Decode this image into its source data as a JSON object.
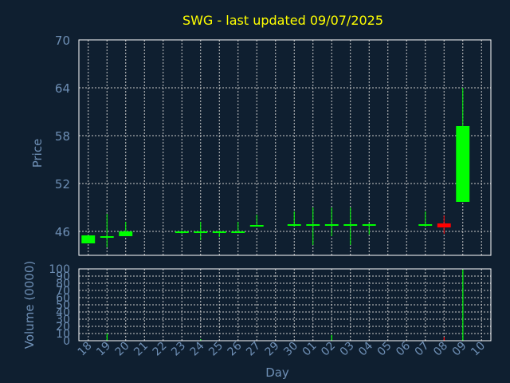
{
  "chart_data": [
    {
      "type": "candlestick",
      "title": "SWG - last updated 09/07/2025",
      "ylabel": "Price",
      "ylim": [
        43,
        70
      ],
      "yticks": [
        "70",
        "64",
        "58",
        "52",
        "46"
      ],
      "x_tick_labels": [
        "18",
        "19",
        "20",
        "21",
        "22",
        "23",
        "24",
        "25",
        "26",
        "27",
        "29",
        "30",
        "01",
        "02",
        "03",
        "04",
        "05",
        "06",
        "07",
        "08",
        "09",
        "10"
      ],
      "grid": true,
      "candles": [
        {
          "x": "18",
          "open": 44.5,
          "high": 45.5,
          "low": 44.5,
          "close": 45.5,
          "color": "#00ff00"
        },
        {
          "x": "19",
          "open": 45.3,
          "high": 48.2,
          "low": 44.0,
          "close": 45.4,
          "color": "#00ff00"
        },
        {
          "x": "20",
          "open": 45.4,
          "high": 47.2,
          "low": 45.4,
          "close": 46.0,
          "color": "#00ff00"
        },
        {
          "x": "23",
          "open": 45.9,
          "high": 46.1,
          "low": 45.7,
          "close": 46.0,
          "color": "#00ff00"
        },
        {
          "x": "24",
          "open": 45.9,
          "high": 47.2,
          "low": 44.9,
          "close": 46.0,
          "color": "#00ff00"
        },
        {
          "x": "25",
          "open": 45.9,
          "high": 46.1,
          "low": 45.3,
          "close": 46.0,
          "color": "#00ff00"
        },
        {
          "x": "26",
          "open": 45.9,
          "high": 47.2,
          "low": 45.8,
          "close": 46.0,
          "color": "#00ff00"
        },
        {
          "x": "27",
          "open": 46.7,
          "high": 48.1,
          "low": 46.6,
          "close": 46.8,
          "color": "#00ff00"
        },
        {
          "x": "30",
          "open": 46.8,
          "high": 48.5,
          "low": 46.6,
          "close": 46.9,
          "color": "#00ff00"
        },
        {
          "x": "01",
          "open": 46.8,
          "high": 49.0,
          "low": 44.3,
          "close": 46.9,
          "color": "#00ff00"
        },
        {
          "x": "02",
          "open": 46.8,
          "high": 49.0,
          "low": 45.4,
          "close": 46.9,
          "color": "#00ff00"
        },
        {
          "x": "03",
          "open": 46.8,
          "high": 49.0,
          "low": 44.3,
          "close": 46.9,
          "color": "#00ff00"
        },
        {
          "x": "04",
          "open": 46.8,
          "high": 47.0,
          "low": 45.6,
          "close": 46.9,
          "color": "#00ff00"
        },
        {
          "x": "07",
          "open": 46.8,
          "high": 48.5,
          "low": 46.6,
          "close": 46.9,
          "color": "#00ff00"
        },
        {
          "x": "08",
          "open": 47.0,
          "high": 48.0,
          "low": 45.7,
          "close": 46.5,
          "color": "#ff0000"
        },
        {
          "x": "09",
          "open": 49.7,
          "high": 64.0,
          "low": 49.7,
          "close": 59.2,
          "color": "#00ff00"
        }
      ]
    },
    {
      "type": "bar",
      "ylabel": "Volume (0000)",
      "xlabel": "Day",
      "ylim": [
        0,
        100
      ],
      "yticks": [
        "100",
        "90",
        "80",
        "70",
        "60",
        "50",
        "40",
        "30",
        "20",
        "10",
        "0"
      ],
      "categories": [
        "19",
        "24",
        "02",
        "08",
        "09"
      ],
      "values": [
        10,
        2,
        8,
        5,
        99
      ],
      "colors": [
        "#00ff00",
        "#00ff00",
        "#00ff00",
        "#ff0000",
        "#00ff00"
      ]
    }
  ]
}
